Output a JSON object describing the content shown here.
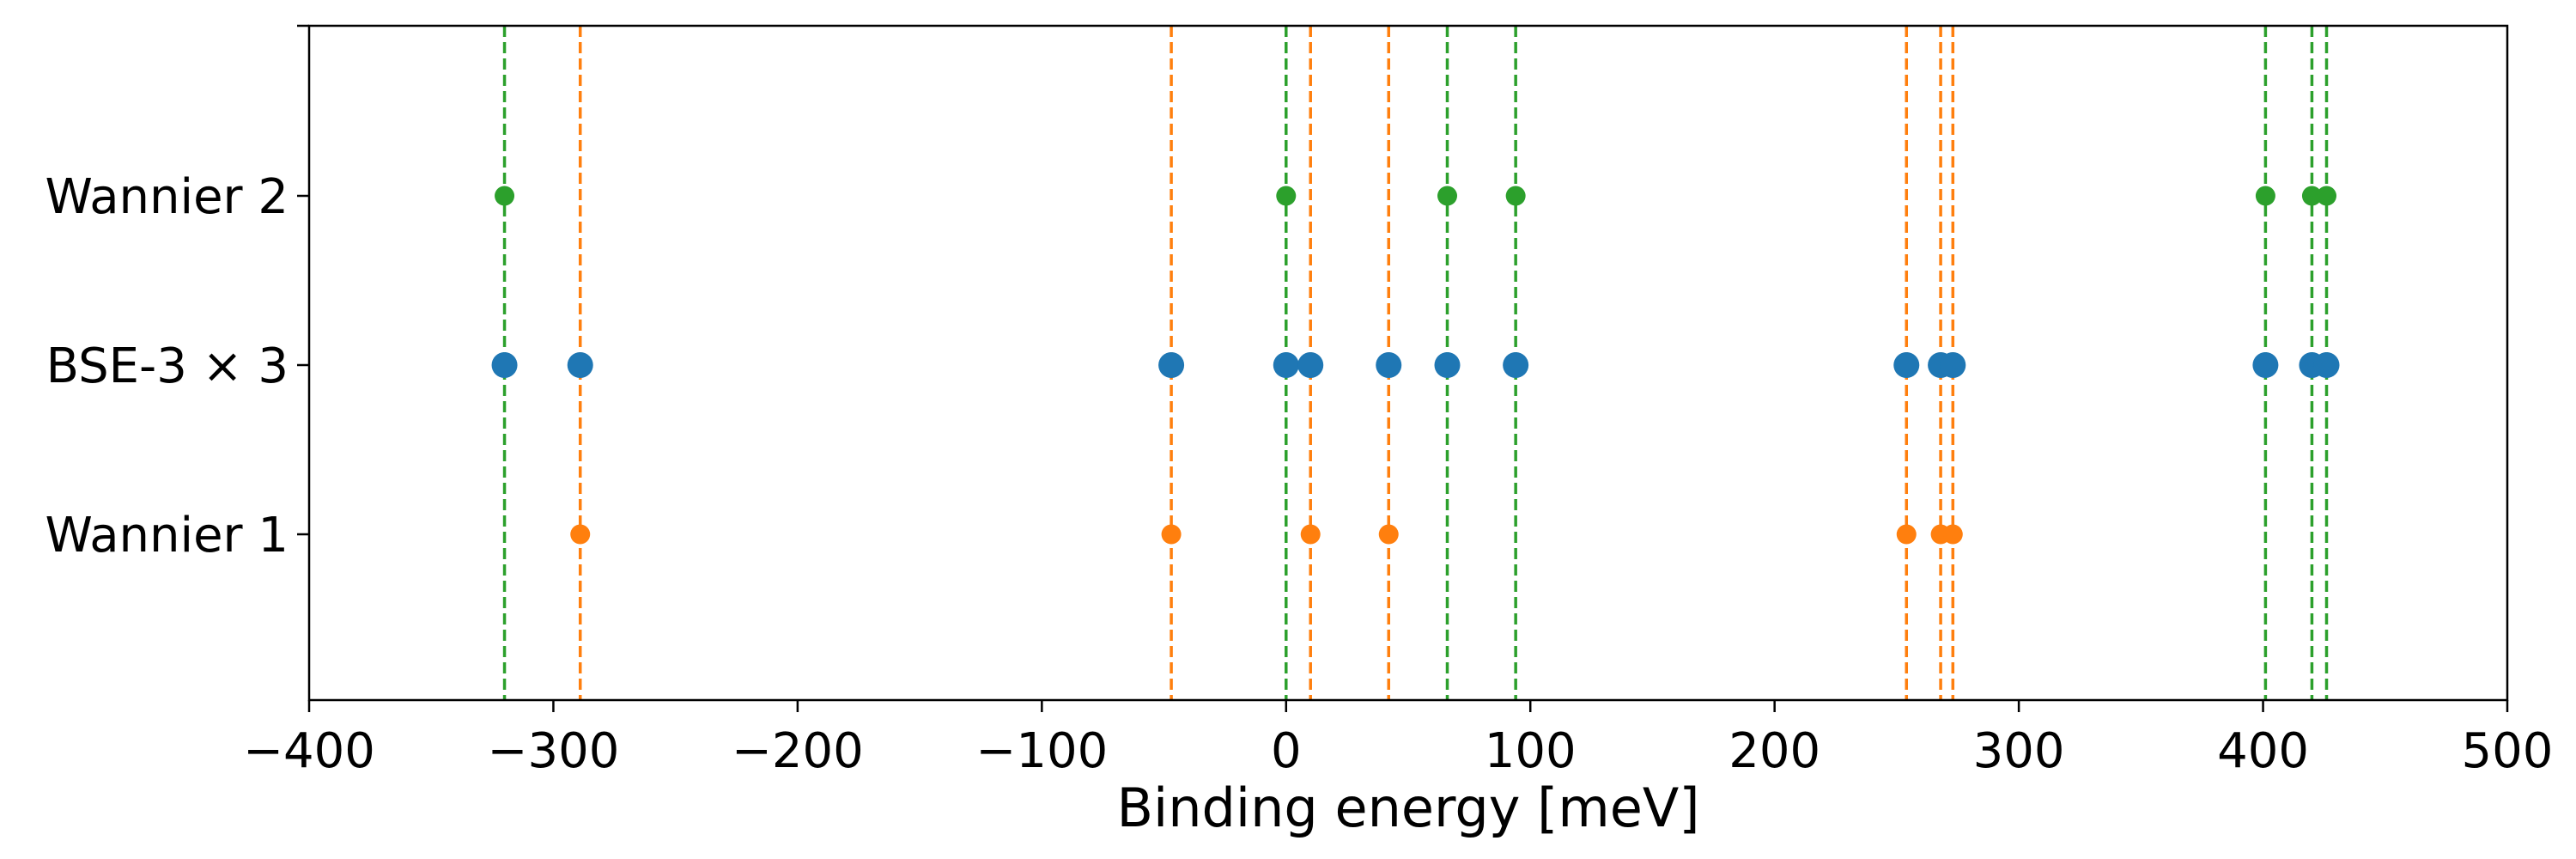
{
  "chart_data": {
    "type": "scatter",
    "title": "",
    "xlabel": "Binding energy [meV]",
    "ylabel": "",
    "xlim": [
      -400,
      500
    ],
    "xticks": [
      -400,
      -300,
      -200,
      -100,
      0,
      100,
      200,
      300,
      400,
      500
    ],
    "xtick_labels": [
      "−400",
      "−300",
      "−200",
      "−100",
      "0",
      "100",
      "200",
      "300",
      "400",
      "500"
    ],
    "categories": [
      "Wannier 1",
      "BSE-3 × 3",
      "Wannier 2"
    ],
    "grid": false,
    "legend": "none",
    "series": [
      {
        "category": "Wannier 2",
        "color": "#2ca02c",
        "marker": "small",
        "x": [
          -320,
          0,
          66,
          94,
          401,
          420,
          426
        ]
      },
      {
        "category": "BSE-3 × 3",
        "color": "#1f77b4",
        "marker": "large",
        "x": [
          -320,
          -289,
          -47,
          0,
          10,
          42,
          66,
          94,
          254,
          268,
          273,
          401,
          420,
          426
        ]
      },
      {
        "category": "Wannier 1",
        "color": "#ff7f0e",
        "marker": "small",
        "x": [
          -289,
          -47,
          10,
          42,
          254,
          268,
          273
        ]
      }
    ],
    "vlines": [
      {
        "color": "#2ca02c",
        "style": "dashed",
        "x": [
          -320,
          0,
          66,
          94,
          401,
          420,
          426
        ]
      },
      {
        "color": "#ff7f0e",
        "style": "dashed",
        "x": [
          -289,
          -47,
          10,
          42,
          254,
          268,
          273
        ]
      }
    ]
  }
}
